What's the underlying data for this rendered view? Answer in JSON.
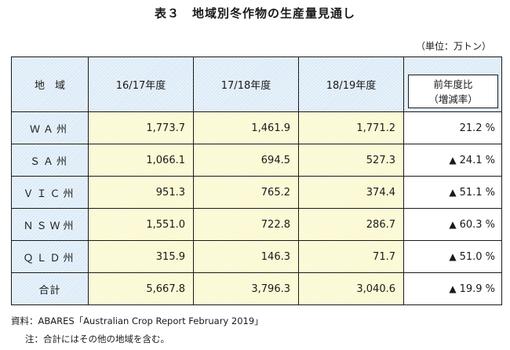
{
  "title": "表３　地域別冬作物の生産量見通し",
  "unit": "（単位：万トン）",
  "headers": {
    "region": "地　域",
    "y1": "16/17年度",
    "y2": "17/18年度",
    "y3": "18/19年度",
    "change_line1": "前年度比",
    "change_line2": "（増減率）"
  },
  "rows": [
    {
      "region": "ＷＡ州",
      "y1": "1,773.7",
      "y2": "1,461.9",
      "y3": "1,771.2",
      "change_marker": "",
      "change": "21.2 %"
    },
    {
      "region": "ＳＡ州",
      "y1": "1,066.1",
      "y2": "694.5",
      "y3": "527.3",
      "change_marker": "▲",
      "change": "24.1 %"
    },
    {
      "region": "ＶＩＣ州",
      "y1": "951.3",
      "y2": "765.2",
      "y3": "374.4",
      "change_marker": "▲",
      "change": "51.1 %"
    },
    {
      "region": "ＮＳＷ州",
      "y1": "1,551.0",
      "y2": "722.8",
      "y3": "286.7",
      "change_marker": "▲",
      "change": "60.3 %"
    },
    {
      "region": "ＱＬＤ州",
      "y1": "315.9",
      "y2": "146.3",
      "y3": "71.7",
      "change_marker": "▲",
      "change": "51.0 %"
    },
    {
      "region": "合計",
      "y1": "5,667.8",
      "y2": "3,796.3",
      "y3": "3,040.6",
      "change_marker": "▲",
      "change": "19.9 %"
    }
  ],
  "footnotes": {
    "source": "資料：ABARES「Australian Crop Report February 2019」",
    "note": "注：合計にはその他の地域を含む。"
  },
  "colors": {
    "header_fill": "#dbeaf7",
    "value_fill": "#fbf8cf",
    "border": "#1a1a1a"
  }
}
